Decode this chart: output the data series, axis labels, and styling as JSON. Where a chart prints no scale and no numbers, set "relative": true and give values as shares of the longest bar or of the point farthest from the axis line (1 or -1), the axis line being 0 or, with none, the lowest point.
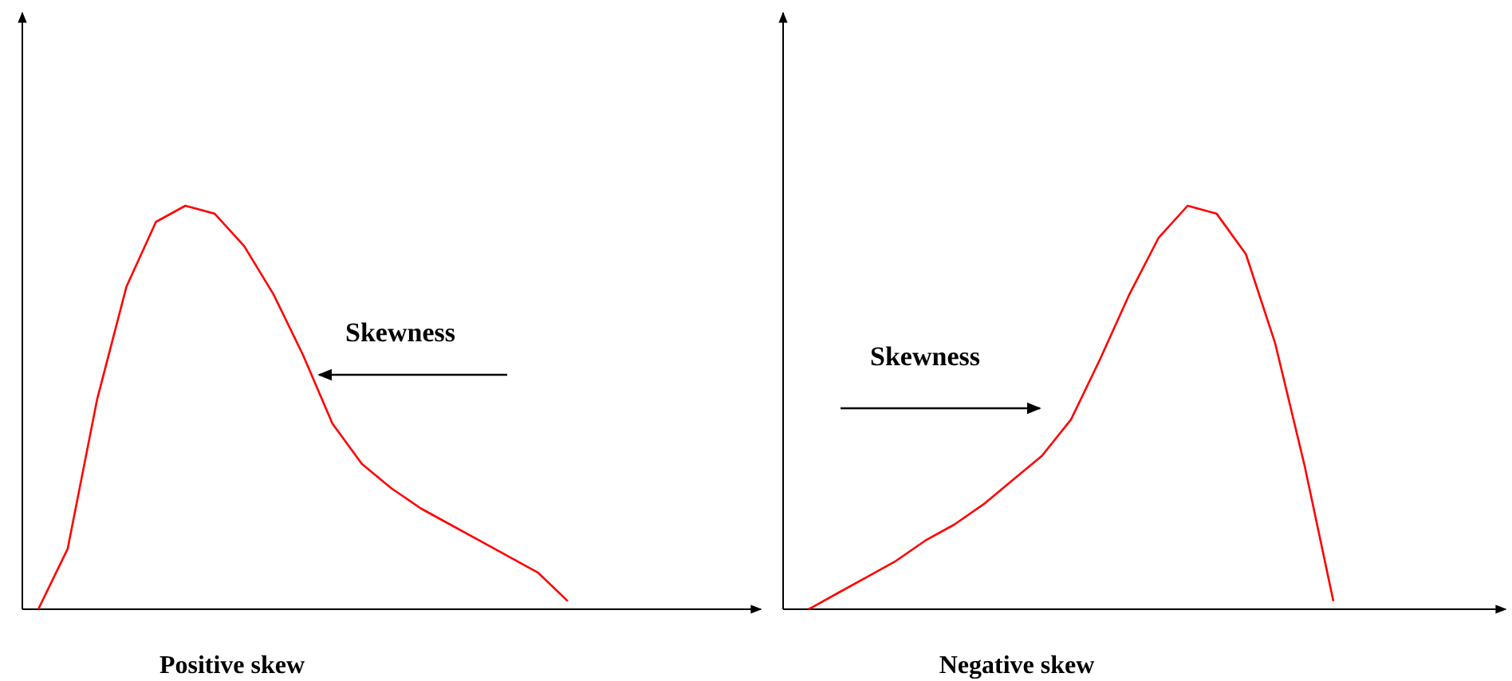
{
  "chart_data": [
    {
      "type": "line",
      "relative": true,
      "xlabel": "Positive skew",
      "annotations": [
        "Skewness"
      ],
      "categories": [
        null,
        null,
        null,
        null,
        null,
        null,
        null,
        null,
        null,
        null,
        null,
        null,
        null,
        null,
        null,
        null,
        null,
        null,
        null
      ],
      "series": [
        {
          "color": "#ff0000",
          "values": [
            0,
            0.15,
            0.52,
            0.8,
            0.96,
            1,
            0.98,
            0.9,
            0.78,
            0.63,
            0.46,
            0.36,
            0.3,
            0.25,
            0.21,
            0.17,
            0.13,
            0.09,
            0.02
          ]
        }
      ]
    },
    {
      "type": "line",
      "relative": true,
      "xlabel": "Negative skew",
      "annotations": [
        "Skewness"
      ],
      "categories": [
        null,
        null,
        null,
        null,
        null,
        null,
        null,
        null,
        null,
        null,
        null,
        null,
        null,
        null,
        null,
        null,
        null,
        null,
        null
      ],
      "series": [
        {
          "color": "#ff0000",
          "values": [
            0,
            0.04,
            0.08,
            0.12,
            0.17,
            0.21,
            0.26,
            0.32,
            0.38,
            0.47,
            0.62,
            0.78,
            0.92,
            1,
            0.98,
            0.88,
            0.66,
            0.36,
            0.02
          ]
        }
      ]
    }
  ]
}
